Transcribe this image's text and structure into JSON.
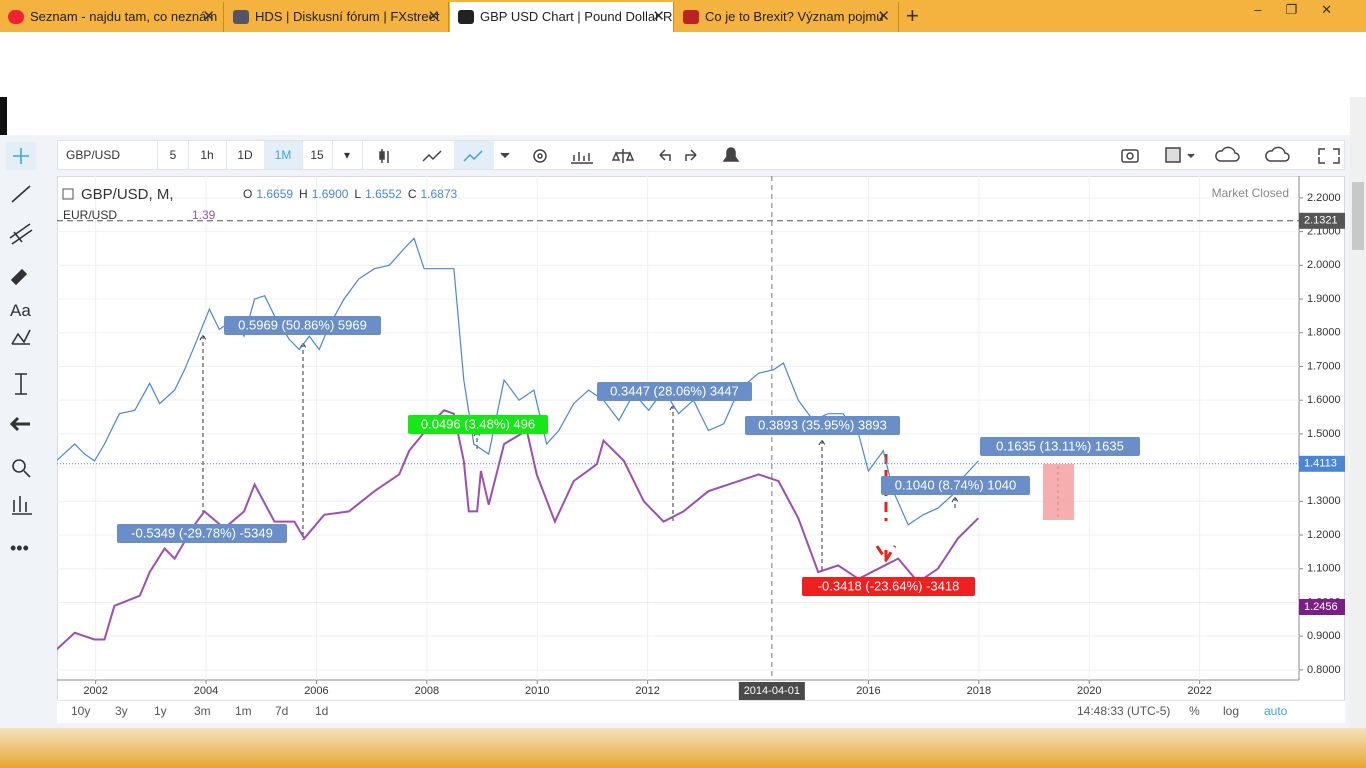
{
  "tabs": [
    "Seznam - najdu tam, co neznám",
    "HDS | Diskusní fórum | FXstreet",
    "GBP USD Chart | Pound Dollar R",
    "Co je to Brexit? Význam pojmu"
  ],
  "toolbar": {
    "symbol": "GBP/USD",
    "intervals": [
      "5",
      "1h",
      "1D",
      "1M",
      "15"
    ]
  },
  "chart_data": {
    "type": "line",
    "header": {
      "symbol": "GBP/USD, M,",
      "ohlc": [
        {
          "label": "O",
          "value": "1.6659"
        },
        {
          "label": "H",
          "value": "1.6900"
        },
        {
          "label": "L",
          "value": "1.6552"
        },
        {
          "label": "C",
          "value": "1.6873"
        }
      ],
      "overlay": "EUR/USD",
      "overlay_value": "1.39",
      "status": "Market Closed"
    },
    "xlim": [
      2001.3,
      2023.8
    ],
    "xticks": [
      2002,
      2004,
      2006,
      2008,
      2010,
      2012,
      2016,
      2018,
      2020,
      2022
    ],
    "ylim": [
      0.77,
      2.265
    ],
    "yticks": [
      {
        "value": 0.8,
        "label": "0.8000"
      },
      {
        "value": 0.9,
        "label": "0.9000"
      },
      {
        "value": 1.0,
        "label": "1.0000"
      },
      {
        "value": 1.1,
        "label": "1.1000"
      },
      {
        "value": 1.2,
        "label": "1.2000"
      },
      {
        "value": 1.3,
        "label": "1.3000"
      },
      {
        "value": 1.4,
        "label": "1.4000"
      },
      {
        "value": 1.5,
        "label": "1.5000"
      },
      {
        "value": 1.6,
        "label": "1.6000"
      },
      {
        "value": 1.7,
        "label": "1.7000"
      },
      {
        "value": 1.8,
        "label": "1.8000"
      },
      {
        "value": 1.9,
        "label": "1.9000"
      },
      {
        "value": 2.0,
        "label": "2.0000"
      },
      {
        "value": 2.1,
        "label": "2.1000"
      },
      {
        "value": 2.2,
        "label": "2.2000"
      }
    ],
    "grid": true,
    "series": [
      {
        "name": "GBP/USD",
        "color": "#4a86d4",
        "x": [
          2001.29,
          2001.62,
          2001.8,
          2001.98,
          2002.16,
          2002.43,
          2002.71,
          2002.98,
          2003.16,
          2003.43,
          2003.61,
          2003.79,
          2004.06,
          2004.24,
          2004.51,
          2004.69,
          2004.88,
          2005.06,
          2005.24,
          2005.51,
          2005.69,
          2005.87,
          2006.05,
          2006.23,
          2006.5,
          2006.77,
          2007.05,
          2007.32,
          2007.59,
          2007.77,
          2007.95,
          2008.22,
          2008.49,
          2008.67,
          2008.85,
          2009.12,
          2009.4,
          2009.67,
          2009.94,
          2010.17,
          2010.39,
          2010.66,
          2010.93,
          2011.2,
          2011.48,
          2011.75,
          2012.02,
          2012.29,
          2012.56,
          2012.83,
          2013.1,
          2013.38,
          2013.65,
          2014.01,
          2014.28,
          2014.46,
          2014.73,
          2015.0,
          2015.27,
          2015.54,
          2015.82,
          2016.0,
          2016.27,
          2016.45,
          2016.72,
          2016.99,
          2017.26,
          2017.53,
          2017.71,
          2017.99
        ],
        "values": [
          1.42,
          1.47,
          1.44,
          1.42,
          1.47,
          1.56,
          1.57,
          1.65,
          1.59,
          1.63,
          1.69,
          1.76,
          1.87,
          1.81,
          1.84,
          1.79,
          1.9,
          1.91,
          1.85,
          1.78,
          1.75,
          1.79,
          1.75,
          1.82,
          1.9,
          1.96,
          1.99,
          2.0,
          2.05,
          2.08,
          1.99,
          1.99,
          1.99,
          1.66,
          1.47,
          1.44,
          1.66,
          1.6,
          1.63,
          1.47,
          1.51,
          1.59,
          1.63,
          1.6,
          1.54,
          1.62,
          1.57,
          1.63,
          1.56,
          1.6,
          1.51,
          1.53,
          1.63,
          1.68,
          1.69,
          1.71,
          1.6,
          1.54,
          1.56,
          1.56,
          1.5,
          1.39,
          1.45,
          1.33,
          1.23,
          1.26,
          1.28,
          1.32,
          1.37,
          1.42
        ]
      },
      {
        "name": "EUR/USD",
        "color": "#9c4fb0",
        "x": [
          2001.29,
          2001.62,
          2001.98,
          2002.16,
          2002.34,
          2002.8,
          2002.98,
          2003.25,
          2003.43,
          2003.79,
          2003.97,
          2004.33,
          2004.69,
          2004.88,
          2005.24,
          2005.6,
          2005.78,
          2006.14,
          2006.59,
          2007.05,
          2007.5,
          2007.68,
          2008.13,
          2008.31,
          2008.49,
          2008.67,
          2008.76,
          2008.91,
          2008.98,
          2009.12,
          2009.4,
          2009.81,
          2009.99,
          2010.32,
          2010.66,
          2011.08,
          2011.2,
          2011.57,
          2011.93,
          2012.29,
          2012.65,
          2013.1,
          2013.65,
          2014.01,
          2014.37,
          2014.73,
          2015.09,
          2015.45,
          2015.82,
          2016.18,
          2016.54,
          2016.9,
          2017.26,
          2017.62,
          2017.99
        ],
        "values": [
          0.86,
          0.91,
          0.89,
          0.89,
          0.99,
          1.02,
          1.09,
          1.16,
          1.13,
          1.23,
          1.27,
          1.22,
          1.27,
          1.35,
          1.24,
          1.24,
          1.19,
          1.26,
          1.27,
          1.33,
          1.38,
          1.45,
          1.54,
          1.57,
          1.56,
          1.42,
          1.27,
          1.27,
          1.39,
          1.29,
          1.47,
          1.51,
          1.38,
          1.24,
          1.36,
          1.41,
          1.48,
          1.42,
          1.3,
          1.24,
          1.27,
          1.33,
          1.36,
          1.38,
          1.36,
          1.25,
          1.09,
          1.11,
          1.07,
          1.1,
          1.13,
          1.06,
          1.1,
          1.19,
          1.25
        ]
      }
    ],
    "price_lines": [
      {
        "value": 2.1321,
        "label": "2.1321",
        "color": "#555555"
      },
      {
        "value": 1.4113,
        "label": "1.4113",
        "color": "#4a86d4"
      }
    ],
    "overlay_price_label": {
      "label": "1.2456",
      "color": "#7b1f86"
    },
    "crosshair": {
      "x": 2014.25,
      "label": "2014-04-01"
    },
    "measurements": [
      {
        "label": "0.5969 (50.86%) 5969",
        "color": "#6a8fc8"
      },
      {
        "label": "-0.5349 (-29.78%) -5349",
        "color": "#6a8fc8"
      },
      {
        "label": "0.0496 (3.48%) 496",
        "color": "#19e619"
      },
      {
        "label": "0.3447 (28.06%) 3447",
        "color": "#6a8fc8"
      },
      {
        "label": "0.3893 (35.95%) 3893",
        "color": "#6a8fc8"
      },
      {
        "label": "0.1040 (8.74%) 1040",
        "color": "#6a8fc8"
      },
      {
        "label": "-0.3418 (-23.64%) -3418",
        "color": "#f02020"
      },
      {
        "label": "0.1635 (13.11%) 1635",
        "color": "#6a8fc8"
      }
    ]
  },
  "bottom_bar": {
    "ranges": [
      "10y",
      "3y",
      "1y",
      "3m",
      "1m",
      "7d",
      "1d"
    ],
    "time": "14:48:33 (UTC-5)",
    "scale_options": [
      "%",
      "log",
      "auto"
    ]
  }
}
